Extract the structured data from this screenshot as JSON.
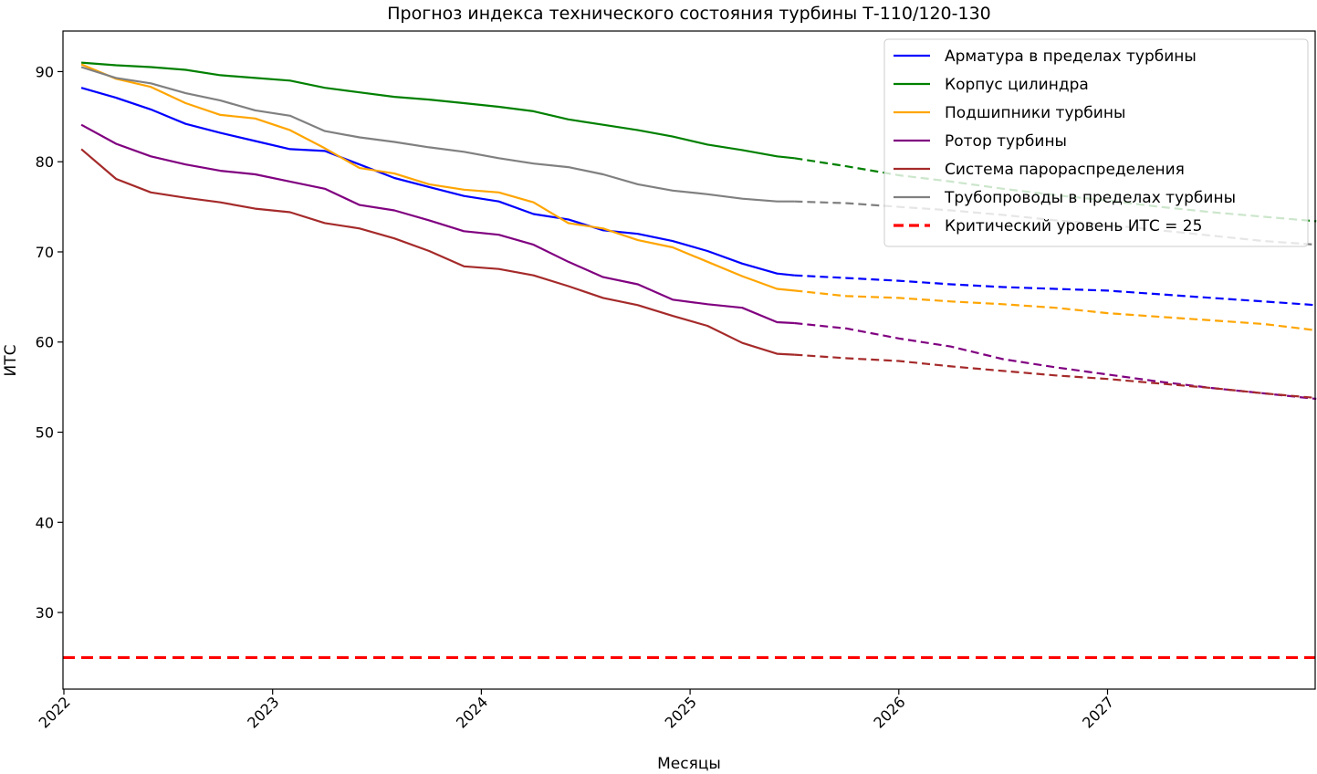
{
  "chart_data": {
    "type": "line",
    "title": "Прогноз индекса технического состояния турбины Т-110/120-130",
    "xlabel": "Месяцы",
    "ylabel": "ИТС",
    "x_ticks": [
      "2022",
      "2023",
      "2024",
      "2025",
      "2026",
      "2027"
    ],
    "x_range": [
      "2022-01",
      "2028-01"
    ],
    "y_ticks": [
      30,
      40,
      50,
      60,
      70,
      80,
      90
    ],
    "ylim": [
      21.5,
      94.5
    ],
    "grid": false,
    "legend_position": "top-right",
    "forecast_start": "2025-07",
    "critical_level": {
      "value": 25,
      "label": "Критический уровень ИТС = 25",
      "color": "#ff0000"
    },
    "series": [
      {
        "name": "Арматура в пределах турбины",
        "color": "#0000ff",
        "points": [
          [
            "2022-02",
            88.2
          ],
          [
            "2022-04",
            87.1
          ],
          [
            "2022-06",
            85.8
          ],
          [
            "2022-08",
            84.2
          ],
          [
            "2022-10",
            83.2
          ],
          [
            "2022-12",
            82.3
          ],
          [
            "2023-02",
            81.4
          ],
          [
            "2023-04",
            81.2
          ],
          [
            "2023-06",
            79.7
          ],
          [
            "2023-08",
            78.2
          ],
          [
            "2023-10",
            77.2
          ],
          [
            "2023-12",
            76.2
          ],
          [
            "2024-02",
            75.6
          ],
          [
            "2024-04",
            74.2
          ],
          [
            "2024-06",
            73.6
          ],
          [
            "2024-08",
            72.4
          ],
          [
            "2024-10",
            72.0
          ],
          [
            "2024-12",
            71.2
          ],
          [
            "2025-02",
            70.1
          ],
          [
            "2025-04",
            68.7
          ],
          [
            "2025-06",
            67.6
          ],
          [
            "2025-07",
            67.4
          ]
        ],
        "forecast": [
          [
            "2025-07",
            67.4
          ],
          [
            "2025-10",
            67.1
          ],
          [
            "2026-01",
            66.8
          ],
          [
            "2026-04",
            66.4
          ],
          [
            "2026-07",
            66.1
          ],
          [
            "2026-10",
            65.9
          ],
          [
            "2027-01",
            65.7
          ],
          [
            "2027-04",
            65.3
          ],
          [
            "2027-07",
            64.9
          ],
          [
            "2027-10",
            64.5
          ],
          [
            "2028-01",
            64.1
          ]
        ]
      },
      {
        "name": "Корпус цилиндра",
        "color": "#008000",
        "points": [
          [
            "2022-02",
            91.0
          ],
          [
            "2022-04",
            90.7
          ],
          [
            "2022-06",
            90.5
          ],
          [
            "2022-08",
            90.2
          ],
          [
            "2022-10",
            89.6
          ],
          [
            "2022-12",
            89.3
          ],
          [
            "2023-02",
            89.0
          ],
          [
            "2023-04",
            88.2
          ],
          [
            "2023-06",
            87.7
          ],
          [
            "2023-08",
            87.2
          ],
          [
            "2023-10",
            86.9
          ],
          [
            "2023-12",
            86.5
          ],
          [
            "2024-02",
            86.1
          ],
          [
            "2024-04",
            85.6
          ],
          [
            "2024-06",
            84.7
          ],
          [
            "2024-08",
            84.1
          ],
          [
            "2024-10",
            83.5
          ],
          [
            "2024-12",
            82.8
          ],
          [
            "2025-02",
            81.9
          ],
          [
            "2025-04",
            81.3
          ],
          [
            "2025-06",
            80.6
          ],
          [
            "2025-07",
            80.4
          ]
        ],
        "forecast": [
          [
            "2025-07",
            80.4
          ],
          [
            "2025-10",
            79.5
          ],
          [
            "2026-01",
            78.5
          ],
          [
            "2026-04",
            77.8
          ],
          [
            "2026-07",
            77.0
          ],
          [
            "2026-10",
            76.3
          ],
          [
            "2027-01",
            75.7
          ],
          [
            "2027-04",
            75.0
          ],
          [
            "2027-07",
            74.4
          ],
          [
            "2027-10",
            73.9
          ],
          [
            "2028-01",
            73.4
          ]
        ]
      },
      {
        "name": "Подшипники турбины",
        "color": "#ffa500",
        "points": [
          [
            "2022-02",
            90.8
          ],
          [
            "2022-04",
            89.2
          ],
          [
            "2022-06",
            88.3
          ],
          [
            "2022-08",
            86.5
          ],
          [
            "2022-10",
            85.2
          ],
          [
            "2022-12",
            84.8
          ],
          [
            "2023-02",
            83.5
          ],
          [
            "2023-04",
            81.5
          ],
          [
            "2023-06",
            79.3
          ],
          [
            "2023-08",
            78.7
          ],
          [
            "2023-10",
            77.5
          ],
          [
            "2023-12",
            76.9
          ],
          [
            "2024-02",
            76.6
          ],
          [
            "2024-04",
            75.5
          ],
          [
            "2024-06",
            73.2
          ],
          [
            "2024-08",
            72.6
          ],
          [
            "2024-10",
            71.3
          ],
          [
            "2024-12",
            70.5
          ],
          [
            "2025-02",
            68.9
          ],
          [
            "2025-04",
            67.3
          ],
          [
            "2025-06",
            65.9
          ],
          [
            "2025-07",
            65.7
          ]
        ],
        "forecast": [
          [
            "2025-07",
            65.7
          ],
          [
            "2025-10",
            65.1
          ],
          [
            "2026-01",
            64.9
          ],
          [
            "2026-04",
            64.5
          ],
          [
            "2026-07",
            64.2
          ],
          [
            "2026-10",
            63.8
          ],
          [
            "2027-01",
            63.2
          ],
          [
            "2027-04",
            62.8
          ],
          [
            "2027-07",
            62.4
          ],
          [
            "2027-10",
            62.0
          ],
          [
            "2028-01",
            61.3
          ]
        ]
      },
      {
        "name": "Ротор турбины",
        "color": "#800080",
        "points": [
          [
            "2022-02",
            84.1
          ],
          [
            "2022-04",
            82.0
          ],
          [
            "2022-06",
            80.6
          ],
          [
            "2022-08",
            79.7
          ],
          [
            "2022-10",
            79.0
          ],
          [
            "2022-12",
            78.6
          ],
          [
            "2023-02",
            77.8
          ],
          [
            "2023-04",
            77.0
          ],
          [
            "2023-06",
            75.2
          ],
          [
            "2023-08",
            74.6
          ],
          [
            "2023-10",
            73.5
          ],
          [
            "2023-12",
            72.3
          ],
          [
            "2024-02",
            71.9
          ],
          [
            "2024-04",
            70.8
          ],
          [
            "2024-06",
            68.9
          ],
          [
            "2024-08",
            67.2
          ],
          [
            "2024-10",
            66.4
          ],
          [
            "2024-12",
            64.7
          ],
          [
            "2025-02",
            64.2
          ],
          [
            "2025-04",
            63.8
          ],
          [
            "2025-06",
            62.2
          ],
          [
            "2025-07",
            62.1
          ]
        ],
        "forecast": [
          [
            "2025-07",
            62.1
          ],
          [
            "2025-10",
            61.5
          ],
          [
            "2026-01",
            60.4
          ],
          [
            "2026-04",
            59.5
          ],
          [
            "2026-07",
            58.1
          ],
          [
            "2026-10",
            57.2
          ],
          [
            "2027-01",
            56.4
          ],
          [
            "2027-04",
            55.6
          ],
          [
            "2027-07",
            54.9
          ],
          [
            "2027-10",
            54.3
          ],
          [
            "2028-01",
            53.7
          ]
        ]
      },
      {
        "name": "Система парораспределения",
        "color": "#a52a2a",
        "points": [
          [
            "2022-02",
            81.4
          ],
          [
            "2022-04",
            78.1
          ],
          [
            "2022-06",
            76.6
          ],
          [
            "2022-08",
            76.0
          ],
          [
            "2022-10",
            75.5
          ],
          [
            "2022-12",
            74.8
          ],
          [
            "2023-02",
            74.4
          ],
          [
            "2023-04",
            73.2
          ],
          [
            "2023-06",
            72.6
          ],
          [
            "2023-08",
            71.5
          ],
          [
            "2023-10",
            70.1
          ],
          [
            "2023-12",
            68.4
          ],
          [
            "2024-02",
            68.1
          ],
          [
            "2024-04",
            67.4
          ],
          [
            "2024-06",
            66.2
          ],
          [
            "2024-08",
            64.9
          ],
          [
            "2024-10",
            64.1
          ],
          [
            "2024-12",
            62.9
          ],
          [
            "2025-02",
            61.8
          ],
          [
            "2025-04",
            59.9
          ],
          [
            "2025-06",
            58.7
          ],
          [
            "2025-07",
            58.6
          ]
        ],
        "forecast": [
          [
            "2025-07",
            58.6
          ],
          [
            "2025-10",
            58.2
          ],
          [
            "2026-01",
            57.9
          ],
          [
            "2026-04",
            57.3
          ],
          [
            "2026-07",
            56.8
          ],
          [
            "2026-10",
            56.3
          ],
          [
            "2027-01",
            55.9
          ],
          [
            "2027-04",
            55.4
          ],
          [
            "2027-07",
            54.9
          ],
          [
            "2027-10",
            54.3
          ],
          [
            "2028-01",
            53.8
          ]
        ]
      },
      {
        "name": "Трубопроводы в пределах турбины",
        "color": "#808080",
        "points": [
          [
            "2022-02",
            90.5
          ],
          [
            "2022-04",
            89.3
          ],
          [
            "2022-06",
            88.7
          ],
          [
            "2022-08",
            87.6
          ],
          [
            "2022-10",
            86.8
          ],
          [
            "2022-12",
            85.7
          ],
          [
            "2023-02",
            85.1
          ],
          [
            "2023-04",
            83.4
          ],
          [
            "2023-06",
            82.7
          ],
          [
            "2023-08",
            82.2
          ],
          [
            "2023-10",
            81.6
          ],
          [
            "2023-12",
            81.1
          ],
          [
            "2024-02",
            80.4
          ],
          [
            "2024-04",
            79.8
          ],
          [
            "2024-06",
            79.4
          ],
          [
            "2024-08",
            78.6
          ],
          [
            "2024-10",
            77.5
          ],
          [
            "2024-12",
            76.8
          ],
          [
            "2025-02",
            76.4
          ],
          [
            "2025-04",
            75.9
          ],
          [
            "2025-06",
            75.6
          ],
          [
            "2025-07",
            75.6
          ]
        ],
        "forecast": [
          [
            "2025-07",
            75.6
          ],
          [
            "2025-10",
            75.4
          ],
          [
            "2026-01",
            75.0
          ],
          [
            "2026-04",
            74.6
          ],
          [
            "2026-07",
            74.1
          ],
          [
            "2026-10",
            73.5
          ],
          [
            "2027-01",
            73.0
          ],
          [
            "2027-04",
            72.4
          ],
          [
            "2027-07",
            71.8
          ],
          [
            "2027-10",
            71.2
          ],
          [
            "2028-01",
            70.8
          ]
        ]
      }
    ]
  }
}
